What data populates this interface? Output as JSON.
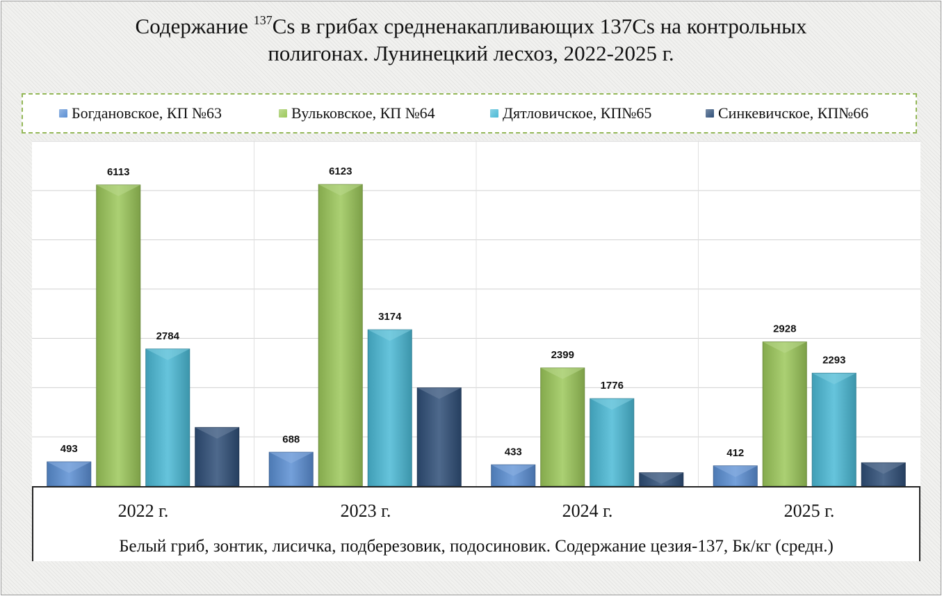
{
  "title": {
    "line1_pre": "Содержание ",
    "sup": "137",
    "line1_post": "Cs в грибах средненакапливающих 137Cs на контрольных",
    "line2": "полигонах. Лунинецкий лесхоз, 2022-2025 г."
  },
  "chart_data": {
    "type": "bar",
    "categories": [
      "2022 г.",
      "2023 г.",
      "2024 г.",
      "2025 г."
    ],
    "series": [
      {
        "name": "Богдановское, КП №63",
        "color": "#5b8fd4",
        "values": [
          493,
          688,
          433,
          412
        ]
      },
      {
        "name": "Вульковское, КП №64",
        "color": "#9cc85a",
        "values": [
          6113,
          6123,
          2399,
          2928
        ]
      },
      {
        "name": "Дятловичское, КП№65",
        "color": "#4bbad6",
        "values": [
          2784,
          3174,
          1776,
          2293
        ]
      },
      {
        "name": "Синкевичское, КП№66",
        "color": "#2f4f78",
        "values": [
          1190,
          1995,
          272,
          474
        ]
      }
    ],
    "value_labels_visible": [
      [
        true,
        true,
        true,
        true
      ],
      [
        true,
        true,
        true,
        true
      ],
      [
        true,
        true,
        true,
        true
      ],
      [
        false,
        false,
        false,
        false
      ]
    ],
    "xlabel": "Белый гриб, зонтик, лисичка, подберезовик, подосиновик. Содержание цезия-137, Бк/кг (средн.)",
    "ylabel": "",
    "ylim": [
      0,
      7000
    ],
    "grid": true,
    "legend_position": "top"
  }
}
